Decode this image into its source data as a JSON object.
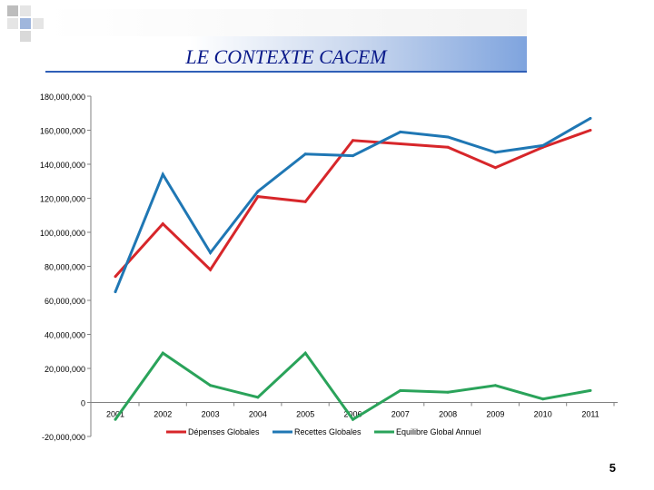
{
  "slide": {
    "title": "LE CONTEXTE CACEM",
    "page_number": "5"
  },
  "colors": {
    "title_text": "#0a1a8a",
    "depenses": "#d7262a",
    "recettes": "#1f77b4",
    "equilibre": "#2aa35a"
  },
  "chart_data": {
    "type": "line",
    "title": "",
    "xlabel": "",
    "ylabel": "",
    "categories": [
      "2001",
      "2002",
      "2003",
      "2004",
      "2005",
      "2006",
      "2007",
      "2008",
      "2009",
      "2010",
      "2011"
    ],
    "ylim": [
      -20000000,
      180000000
    ],
    "yticks": [
      -20000000,
      0,
      20000000,
      40000000,
      60000000,
      80000000,
      100000000,
      120000000,
      140000000,
      160000000,
      180000000
    ],
    "ytick_labels": [
      "-20,000,000",
      "0",
      "20,000,000",
      "40,000,000",
      "60,000,000",
      "80,000,000",
      "100,000,000",
      "120,000,000",
      "140,000,000",
      "160,000,000",
      "180,000,000"
    ],
    "grid": false,
    "legend_position": "bottom",
    "series": [
      {
        "name": "Dépenses Globales",
        "color": "#d7262a",
        "values": [
          74000000,
          105000000,
          78000000,
          121000000,
          118000000,
          154000000,
          152000000,
          150000000,
          138000000,
          150000000,
          160000000
        ]
      },
      {
        "name": "Recettes Globales",
        "color": "#1f77b4",
        "values": [
          65000000,
          134000000,
          88000000,
          124000000,
          146000000,
          145000000,
          159000000,
          156000000,
          147000000,
          151000000,
          167000000
        ]
      },
      {
        "name": "Equilibre Global Annuel",
        "color": "#2aa35a",
        "values": [
          -10000000,
          29000000,
          10000000,
          3000000,
          29000000,
          -10000000,
          7000000,
          6000000,
          10000000,
          2000000,
          7000000
        ]
      }
    ]
  }
}
